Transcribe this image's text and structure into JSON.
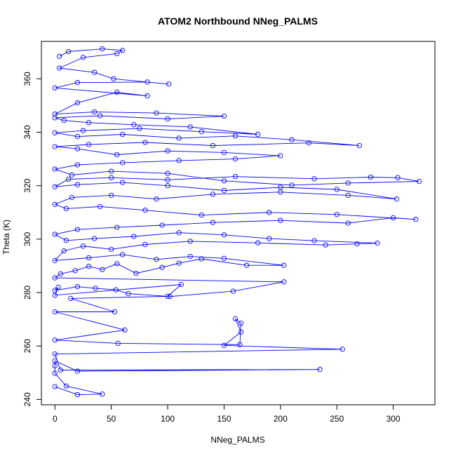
{
  "chart_data": {
    "type": "line",
    "title": "ATOM2 Northbound NNeg_PALMS",
    "xlabel": "NNeg_PALMS",
    "ylabel": "Theta (K)",
    "xlim": [
      -12,
      337
    ],
    "ylim": [
      238,
      374
    ],
    "grid": false,
    "x_ticks": [
      0,
      50,
      100,
      150,
      200,
      250,
      300
    ],
    "x_tick_labels": [
      "0",
      "50",
      "100",
      "150",
      "200",
      "250",
      "300"
    ],
    "y_ticks": [
      240,
      260,
      280,
      300,
      320,
      340,
      360
    ],
    "y_tick_labels": [
      "240",
      "260",
      "280",
      "300",
      "320",
      "340",
      "360"
    ],
    "series": [
      {
        "color": "#0000ff",
        "marker": "open-circle",
        "points": [
          [
            0,
            244.8
          ],
          [
            20,
            241.8
          ],
          [
            42,
            242.0
          ],
          [
            10,
            245.0
          ],
          [
            0,
            249.8
          ],
          [
            0,
            252.6
          ],
          [
            0,
            254.4
          ],
          [
            20,
            250.6
          ],
          [
            235,
            251.2
          ],
          [
            5,
            251.0
          ],
          [
            0,
            257.0
          ],
          [
            255,
            258.8
          ],
          [
            150,
            260.2
          ],
          [
            165,
            265.2
          ],
          [
            160,
            270.2
          ],
          [
            165,
            268.5
          ],
          [
            164,
            260.5
          ],
          [
            56,
            261.0
          ],
          [
            0,
            262.2
          ],
          [
            62,
            266.0
          ],
          [
            0,
            272.8
          ],
          [
            53,
            272.8
          ],
          [
            14,
            277.8
          ],
          [
            100,
            278.6
          ],
          [
            112,
            283.0
          ],
          [
            0,
            279.0
          ],
          [
            3,
            282.0
          ],
          [
            0,
            280.8
          ],
          [
            20,
            282.2
          ],
          [
            36,
            281.6
          ],
          [
            54,
            281.0
          ],
          [
            65,
            279.6
          ],
          [
            102,
            278.5
          ],
          [
            158,
            280.5
          ],
          [
            203,
            284.0
          ],
          [
            0,
            285.5
          ],
          [
            5,
            287.0
          ],
          [
            18,
            288.2
          ],
          [
            30,
            289.8
          ],
          [
            42,
            288.6
          ],
          [
            55,
            290.8
          ],
          [
            72,
            287.2
          ],
          [
            95,
            289.4
          ],
          [
            110,
            291.0
          ],
          [
            130,
            292.6
          ],
          [
            170,
            290.2
          ],
          [
            203,
            290.2
          ],
          [
            150,
            292.8
          ],
          [
            120,
            293.5
          ],
          [
            90,
            292.4
          ],
          [
            60,
            294.2
          ],
          [
            30,
            293.0
          ],
          [
            0,
            292.0
          ],
          [
            8,
            295.6
          ],
          [
            25,
            297.4
          ],
          [
            50,
            296.2
          ],
          [
            80,
            298.0
          ],
          [
            120,
            299.2
          ],
          [
            180,
            298.6
          ],
          [
            240,
            297.8
          ],
          [
            268,
            298.2
          ],
          [
            286,
            298.5
          ],
          [
            230,
            299.4
          ],
          [
            190,
            300.2
          ],
          [
            150,
            301.6
          ],
          [
            110,
            302.4
          ],
          [
            70,
            301.0
          ],
          [
            35,
            300.2
          ],
          [
            10,
            299.5
          ],
          [
            0,
            301.8
          ],
          [
            20,
            303.6
          ],
          [
            55,
            304.4
          ],
          [
            95,
            305.2
          ],
          [
            140,
            306.2
          ],
          [
            200,
            307.0
          ],
          [
            260,
            306.0
          ],
          [
            300,
            308.0
          ],
          [
            320,
            307.4
          ],
          [
            250,
            309.2
          ],
          [
            190,
            310.0
          ],
          [
            130,
            309.0
          ],
          [
            80,
            310.8
          ],
          [
            40,
            312.2
          ],
          [
            10,
            311.4
          ],
          [
            0,
            313.0
          ],
          [
            15,
            315.6
          ],
          [
            50,
            316.4
          ],
          [
            90,
            315.0
          ],
          [
            140,
            316.8
          ],
          [
            200,
            317.6
          ],
          [
            260,
            316.4
          ],
          [
            303,
            315.0
          ],
          [
            250,
            318.6
          ],
          [
            200,
            319.4
          ],
          [
            150,
            318.2
          ],
          [
            100,
            320.0
          ],
          [
            60,
            321.2
          ],
          [
            20,
            320.4
          ],
          [
            0,
            319.6
          ],
          [
            12,
            322.4
          ],
          [
            50,
            323.0
          ],
          [
            100,
            322.2
          ],
          [
            160,
            323.4
          ],
          [
            230,
            322.6
          ],
          [
            280,
            323.2
          ],
          [
            304,
            323.0
          ],
          [
            323,
            321.6
          ],
          [
            260,
            321.0
          ],
          [
            210,
            320.2
          ],
          [
            150,
            321.8
          ],
          [
            100,
            324.6
          ],
          [
            50,
            325.4
          ],
          [
            15,
            324.0
          ],
          [
            0,
            326.2
          ],
          [
            20,
            327.8
          ],
          [
            60,
            328.6
          ],
          [
            110,
            329.4
          ],
          [
            160,
            330.0
          ],
          [
            200,
            331.2
          ],
          [
            150,
            332.4
          ],
          [
            100,
            333.0
          ],
          [
            55,
            331.6
          ],
          [
            20,
            333.8
          ],
          [
            0,
            334.6
          ],
          [
            30,
            335.4
          ],
          [
            80,
            336.2
          ],
          [
            140,
            335.0
          ],
          [
            225,
            336.0
          ],
          [
            270,
            335.0
          ],
          [
            210,
            337.2
          ],
          [
            160,
            338.6
          ],
          [
            110,
            337.8
          ],
          [
            60,
            339.2
          ],
          [
            20,
            338.4
          ],
          [
            0,
            339.8
          ],
          [
            25,
            340.6
          ],
          [
            75,
            341.4
          ],
          [
            130,
            340.2
          ],
          [
            180,
            339.2
          ],
          [
            120,
            342.0
          ],
          [
            70,
            342.8
          ],
          [
            30,
            343.6
          ],
          [
            8,
            344.4
          ],
          [
            0,
            345.4
          ],
          [
            40,
            346.2
          ],
          [
            100,
            345.0
          ],
          [
            150,
            346.0
          ],
          [
            90,
            347.2
          ],
          [
            35,
            347.6
          ],
          [
            0,
            346.8
          ],
          [
            20,
            351.0
          ],
          [
            55,
            355.0
          ],
          [
            82,
            353.6
          ],
          [
            0,
            356.6
          ],
          [
            20,
            358.6
          ],
          [
            82,
            358.8
          ],
          [
            101,
            358.0
          ],
          [
            52,
            360.0
          ],
          [
            35,
            362.4
          ],
          [
            4,
            364.0
          ],
          [
            25,
            368.0
          ],
          [
            55,
            369.4
          ],
          [
            60,
            370.6
          ],
          [
            42,
            371.2
          ],
          [
            12,
            370.2
          ],
          [
            4,
            368.4
          ]
        ]
      }
    ]
  }
}
